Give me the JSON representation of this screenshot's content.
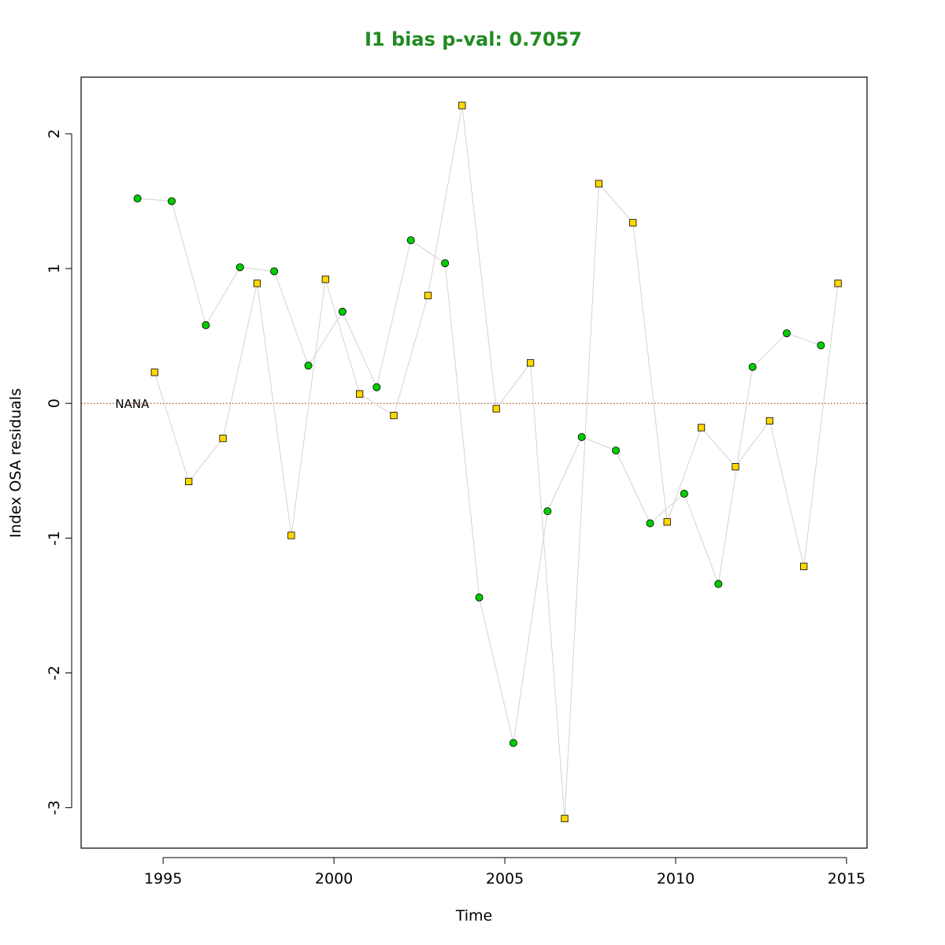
{
  "chart_data": {
    "type": "scatter",
    "title": "I1 bias p-val: 0.7057",
    "title_color": "#228b22",
    "xlabel": "Time",
    "ylabel": "Index OSA residuals",
    "xlim": [
      1992.6,
      2015.6
    ],
    "ylim": [
      -3.3,
      2.42
    ],
    "xticks": [
      1995,
      2000,
      2005,
      2010,
      2015
    ],
    "yticks": [
      -3,
      -2,
      -1,
      0,
      1,
      2
    ],
    "grid": false,
    "legend": "none",
    "reference_line": {
      "y": 0,
      "style": "dotted",
      "color": "#8b4513"
    },
    "annotations": [
      {
        "text": "NANA",
        "x": 1993.6,
        "y": 0
      }
    ],
    "connect_color": "#d3d3d3",
    "series": [
      {
        "marker": "circle",
        "color": "#00cc00",
        "points": [
          {
            "x": 1994.25,
            "y": 1.52
          },
          {
            "x": 1995.25,
            "y": 1.5
          },
          {
            "x": 1996.25,
            "y": 0.58
          },
          {
            "x": 1997.25,
            "y": 1.01
          },
          {
            "x": 1998.25,
            "y": 0.98
          },
          {
            "x": 1999.25,
            "y": 0.28
          },
          {
            "x": 2000.25,
            "y": 0.68
          },
          {
            "x": 2001.25,
            "y": 0.12
          },
          {
            "x": 2002.25,
            "y": 1.21
          },
          {
            "x": 2003.25,
            "y": 1.04
          },
          {
            "x": 2004.25,
            "y": -1.44
          },
          {
            "x": 2005.25,
            "y": -2.52
          },
          {
            "x": 2006.25,
            "y": -0.8
          },
          {
            "x": 2007.25,
            "y": -0.25
          },
          {
            "x": 2008.25,
            "y": -0.35
          },
          {
            "x": 2009.25,
            "y": -0.89
          },
          {
            "x": 2010.25,
            "y": -0.67
          },
          {
            "x": 2011.25,
            "y": -1.34
          },
          {
            "x": 2012.25,
            "y": 0.27
          },
          {
            "x": 2013.25,
            "y": 0.52
          },
          {
            "x": 2014.25,
            "y": 0.43
          }
        ]
      },
      {
        "marker": "square",
        "color": "#ffd700",
        "points": [
          {
            "x": 1994.75,
            "y": 0.23
          },
          {
            "x": 1995.75,
            "y": -0.58
          },
          {
            "x": 1996.75,
            "y": -0.26
          },
          {
            "x": 1997.75,
            "y": 0.89
          },
          {
            "x": 1998.75,
            "y": -0.98
          },
          {
            "x": 1999.75,
            "y": 0.92
          },
          {
            "x": 2000.75,
            "y": 0.07
          },
          {
            "x": 2001.75,
            "y": -0.09
          },
          {
            "x": 2002.75,
            "y": 0.8
          },
          {
            "x": 2003.75,
            "y": 2.21
          },
          {
            "x": 2004.75,
            "y": -0.04
          },
          {
            "x": 2005.75,
            "y": 0.3
          },
          {
            "x": 2006.75,
            "y": -3.08
          },
          {
            "x": 2007.75,
            "y": 1.63
          },
          {
            "x": 2008.75,
            "y": 1.34
          },
          {
            "x": 2009.75,
            "y": -0.88
          },
          {
            "x": 2010.75,
            "y": -0.18
          },
          {
            "x": 2011.75,
            "y": -0.47
          },
          {
            "x": 2012.75,
            "y": -0.13
          },
          {
            "x": 2013.75,
            "y": -1.21
          },
          {
            "x": 2014.75,
            "y": 0.89
          }
        ]
      }
    ]
  }
}
